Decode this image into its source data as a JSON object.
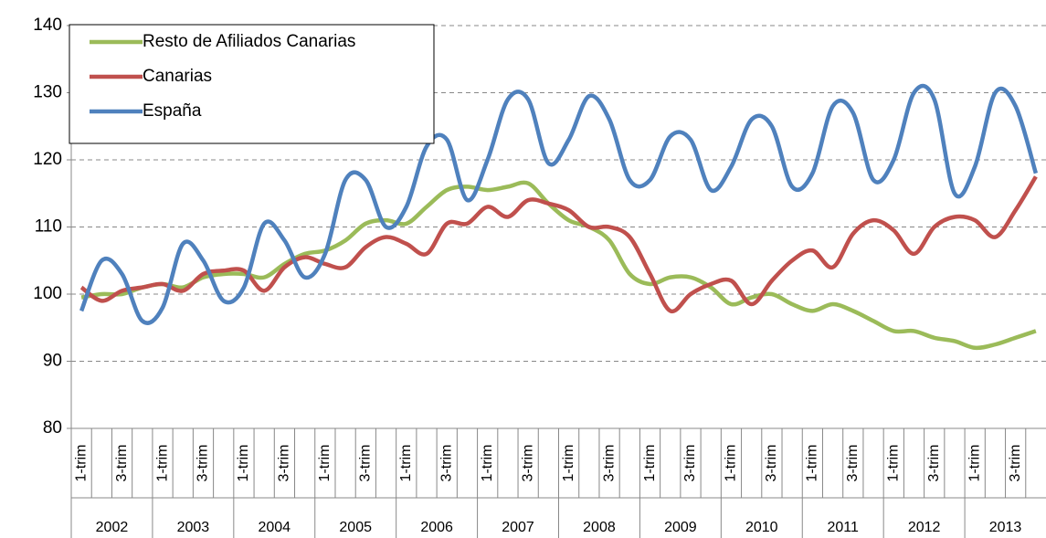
{
  "chart_data": {
    "type": "line",
    "categories": [
      "1-trim",
      null,
      "3-trim",
      null,
      "1-trim",
      null,
      "3-trim",
      null,
      "1-trim",
      null,
      "3-trim",
      null,
      "1-trim",
      null,
      "3-trim",
      null,
      "1-trim",
      null,
      "3-trim",
      null,
      "1-trim",
      null,
      "3-trim",
      null,
      "1-trim",
      null,
      "3-trim",
      null,
      "1-trim",
      null,
      "3-trim",
      null,
      "1-trim",
      null,
      "3-trim",
      null,
      "1-trim",
      null,
      "3-trim",
      null,
      "1-trim",
      null,
      "3-trim",
      null,
      "1-trim",
      null,
      "3-trim",
      null
    ],
    "groups": [
      "2002",
      "2003",
      "2004",
      "2005",
      "2006",
      "2007",
      "2008",
      "2009",
      "2010",
      "2011",
      "2012",
      "2013"
    ],
    "series": [
      {
        "name": "Resto de Afiliados Canarias",
        "color": "#9bbb59",
        "values": [
          99.5,
          100,
          100,
          101,
          101.5,
          101,
          102.5,
          103,
          103,
          102.5,
          104.5,
          106,
          106.5,
          108,
          110.5,
          111,
          110.5,
          113,
          115.5,
          116,
          115.5,
          116,
          116.5,
          113.5,
          111,
          110,
          108,
          103,
          101.5,
          102.5,
          102.5,
          101,
          98.5,
          99.5,
          100,
          98.5,
          97.5,
          98.5,
          97.5,
          96,
          94.5,
          94.5,
          93.5,
          93,
          92,
          92.5,
          93.5,
          94.5
        ]
      },
      {
        "name": "Canarias",
        "color": "#c0504d",
        "values": [
          101,
          99,
          100.5,
          101,
          101.5,
          100.5,
          103,
          103.5,
          103.5,
          100.5,
          104,
          105.5,
          104.5,
          104,
          107,
          108.5,
          107.5,
          106,
          110.5,
          110.5,
          113,
          111.5,
          114,
          113.5,
          112.5,
          110,
          110,
          108.5,
          103,
          97.5,
          100,
          101.5,
          102,
          98.5,
          102,
          105,
          106.5,
          104,
          109,
          111,
          109.5,
          106,
          110,
          111.5,
          111,
          108.5,
          112.5,
          117.5
        ]
      },
      {
        "name": "España",
        "color": "#4f81bd",
        "values": [
          97.5,
          105,
          103,
          96,
          98,
          107.5,
          105,
          99,
          101,
          110.5,
          108,
          102.5,
          106,
          117,
          117,
          110,
          113,
          122,
          123,
          114,
          120,
          129,
          129,
          119.5,
          123,
          129.5,
          126,
          117,
          117,
          123.5,
          123,
          115.5,
          119,
          126,
          125,
          116,
          118,
          128,
          127,
          117,
          120,
          130,
          129,
          115,
          119,
          130,
          128,
          118
        ]
      }
    ],
    "ylim": [
      80,
      140
    ],
    "yticks": [
      80,
      90,
      100,
      110,
      120,
      130,
      140
    ],
    "grid": true,
    "legend": "top-left"
  }
}
